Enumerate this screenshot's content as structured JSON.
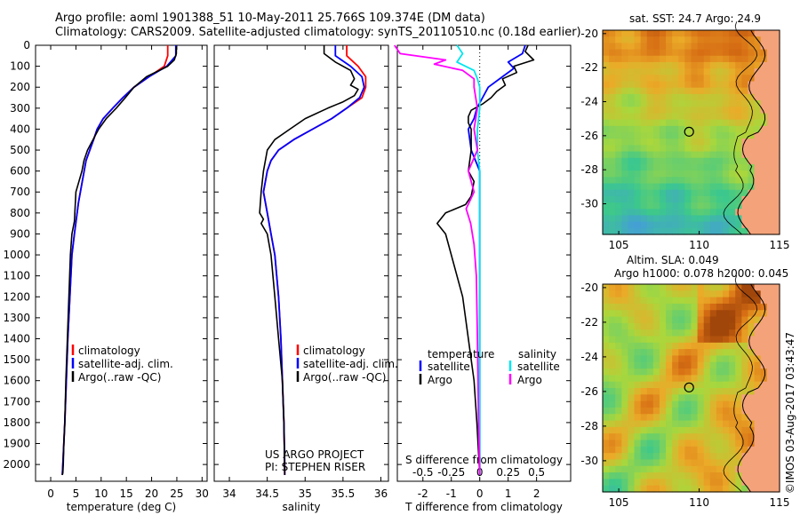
{
  "header": {
    "line1": "Argo profile: aoml 1901388_51 10-May-2011 25.766S 109.374E (DM data)",
    "line2": "Climatology: CARS2009. Satellite-adjusted climatology: synTS_20110510.nc (0.18d earlier)"
  },
  "side_text": "©IMOS 03-Aug-2017 03:43:47",
  "colors": {
    "climatology": "#ff0000",
    "satellite": "#0000ff",
    "argo": "#000000",
    "salinity_satellite": "#00e5ee",
    "salinity_argo": "#ff00ff",
    "land": "#f4a27a",
    "coast": "#000000"
  },
  "chart_data": [
    {
      "type": "line",
      "xlabel": "temperature (deg C)",
      "ylabel": "",
      "xlim": [
        -3,
        31
      ],
      "ylim": [
        2080,
        0
      ],
      "x_ticks": [
        0,
        5,
        10,
        15,
        20,
        25,
        30
      ],
      "y_ticks": [
        0,
        100,
        200,
        300,
        400,
        500,
        600,
        700,
        800,
        900,
        1000,
        1100,
        1200,
        1300,
        1400,
        1500,
        1600,
        1700,
        1800,
        1900,
        2000
      ],
      "legend": {
        "placement": "lower-center",
        "entries": [
          "climatology",
          "satellite-adj. clim.",
          "Argo(..raw -QC)"
        ]
      },
      "series": [
        {
          "name": "climatology",
          "color": "#ff0000",
          "x": [
            23.2,
            23.2,
            22.5,
            19.5,
            16.5,
            14.3,
            12.3,
            10.4,
            9.2,
            8.5,
            7.0,
            5.5,
            4.7,
            4.2,
            3.8,
            3.4,
            3.1,
            2.8,
            2.6,
            2.4,
            2.3
          ],
          "y": [
            0,
            50,
            100,
            150,
            200,
            250,
            300,
            350,
            400,
            450,
            550,
            750,
            900,
            1000,
            1200,
            1400,
            1600,
            1800,
            1900,
            2000,
            2050
          ]
        },
        {
          "name": "satellite-adj. clim.",
          "color": "#0000ff",
          "x": [
            24.8,
            24.8,
            23.0,
            19.5,
            16.5,
            14.3,
            12.3,
            10.4,
            9.2,
            8.5,
            7.0,
            5.5,
            4.7,
            4.2,
            3.8,
            3.4,
            3.1,
            2.8,
            2.6,
            2.4,
            2.3
          ],
          "y": [
            0,
            50,
            100,
            150,
            200,
            250,
            300,
            350,
            400,
            450,
            550,
            750,
            900,
            1000,
            1200,
            1400,
            1600,
            1800,
            1900,
            2000,
            2050
          ]
        },
        {
          "name": "Argo(..raw -QC)",
          "color": "#000000",
          "x": [
            24.9,
            24.9,
            24.5,
            23.2,
            19.0,
            16.5,
            14.8,
            13.0,
            11.0,
            9.5,
            8.4,
            7.3,
            6.6,
            6.2,
            5.0,
            4.7,
            4.2,
            3.9,
            3.6,
            3.3,
            3.0,
            2.8,
            2.6,
            2.5,
            2.4,
            2.3
          ],
          "y": [
            5,
            40,
            70,
            100,
            150,
            200,
            250,
            300,
            350,
            400,
            450,
            500,
            550,
            600,
            700,
            840,
            900,
            1000,
            1200,
            1400,
            1600,
            1800,
            1900,
            2000,
            2040,
            2050
          ]
        }
      ]
    },
    {
      "type": "line",
      "xlabel": "salinity",
      "ylabel": "",
      "xlim": [
        33.8,
        36.1
      ],
      "ylim": [
        2080,
        0
      ],
      "x_ticks": [
        34,
        34.5,
        35,
        35.5,
        36
      ],
      "y_ticks": [
        0,
        100,
        200,
        300,
        400,
        500,
        600,
        700,
        800,
        900,
        1000,
        1100,
        1200,
        1300,
        1400,
        1500,
        1600,
        1700,
        1800,
        1900,
        2000
      ],
      "legend": {
        "placement": "lower-center",
        "entries": [
          "climatology",
          "satellite-adj. clim.",
          "Argo(..raw -QC)"
        ]
      },
      "annotation": [
        "US ARGO PROJECT",
        "PI: STEPHEN RISER"
      ],
      "series": [
        {
          "name": "climatology",
          "color": "#ff0000",
          "x": [
            35.55,
            35.55,
            35.7,
            35.8,
            35.8,
            35.75,
            35.55,
            35.35,
            35.1,
            34.85,
            34.65,
            34.55,
            34.5,
            34.45,
            34.5,
            34.55,
            34.6,
            34.65,
            34.68,
            34.7,
            34.72,
            34.73,
            34.73
          ],
          "y": [
            0,
            50,
            100,
            150,
            200,
            250,
            300,
            350,
            400,
            450,
            500,
            550,
            600,
            700,
            800,
            900,
            1000,
            1200,
            1400,
            1600,
            1800,
            2000,
            2050
          ]
        },
        {
          "name": "satellite-adj. clim.",
          "color": "#0000ff",
          "x": [
            35.4,
            35.4,
            35.6,
            35.75,
            35.78,
            35.72,
            35.55,
            35.35,
            35.1,
            34.85,
            34.65,
            34.55,
            34.5,
            34.45,
            34.5,
            34.55,
            34.6,
            34.65,
            34.68,
            34.7,
            34.72,
            34.73,
            34.73
          ],
          "y": [
            0,
            50,
            100,
            150,
            200,
            250,
            300,
            350,
            400,
            450,
            500,
            550,
            600,
            700,
            800,
            900,
            1000,
            1200,
            1400,
            1600,
            1800,
            2000,
            2050
          ]
        },
        {
          "name": "Argo(..raw -QC)",
          "color": "#000000",
          "x": [
            35.25,
            35.25,
            35.4,
            35.6,
            35.65,
            35.6,
            35.7,
            35.65,
            35.5,
            35.3,
            35.0,
            34.8,
            34.6,
            34.5,
            34.45,
            34.42,
            34.4,
            34.45,
            34.42,
            34.5,
            34.55,
            34.6,
            34.65,
            34.7,
            34.72,
            34.73
          ],
          "y": [
            0,
            40,
            80,
            120,
            160,
            190,
            210,
            240,
            270,
            300,
            350,
            400,
            450,
            500,
            600,
            700,
            800,
            830,
            850,
            900,
            1000,
            1200,
            1400,
            1600,
            1800,
            2050
          ]
        }
      ]
    },
    {
      "type": "line",
      "xlabel": "T difference from climatology",
      "ylabel": "",
      "xlim": [
        -2.9,
        3.2
      ],
      "ylim": [
        2080,
        0
      ],
      "x_ticks": [
        -2,
        -1,
        0,
        1,
        2
      ],
      "x_ticks_top": [
        -0.5,
        -0.25,
        0,
        0.25,
        0.5
      ],
      "x_label_top": "S difference from climatology",
      "y_ticks": [
        0,
        100,
        200,
        300,
        400,
        500,
        600,
        700,
        800,
        900,
        1000,
        1100,
        1200,
        1300,
        1400,
        1500,
        1600,
        1700,
        1800,
        1900,
        2000
      ],
      "legend": {
        "placement": "lower-center",
        "group_titles": [
          "temperature",
          "salinity"
        ],
        "entries": [
          "satellite",
          "Argo",
          "satellite",
          "Argo"
        ]
      },
      "series": [
        {
          "name": "satellite",
          "group": "temperature",
          "color": "#0000ff",
          "x": [
            1.6,
            1.5,
            1.0,
            1.2,
            0.8,
            0.3,
            0.1,
            -0.1,
            -0.2,
            -0.4,
            -0.3,
            0.0,
            0.0,
            0.0,
            0.0,
            0.0,
            0.0,
            0.0,
            0.0
          ],
          "y": [
            0,
            40,
            80,
            110,
            150,
            200,
            250,
            300,
            350,
            400,
            500,
            600,
            700,
            800,
            900,
            1000,
            1400,
            1800,
            2050
          ]
        },
        {
          "name": "Argo",
          "group": "temperature",
          "color": "#000000",
          "x": [
            1.7,
            1.6,
            1.9,
            1.2,
            1.3,
            0.8,
            0.9,
            0.6,
            0.4,
            0.1,
            -0.3,
            -0.4,
            -0.4,
            -0.3,
            -0.3,
            -0.4,
            -0.2,
            -0.3,
            -0.5,
            -1.2,
            -1.5,
            -1.2,
            -1.0,
            -0.6,
            -0.4,
            -0.2,
            -0.1,
            0.0
          ],
          "y": [
            0,
            30,
            70,
            100,
            130,
            160,
            190,
            220,
            250,
            280,
            310,
            340,
            370,
            400,
            500,
            600,
            650,
            720,
            760,
            800,
            850,
            900,
            1000,
            1200,
            1400,
            1600,
            1800,
            2050
          ]
        },
        {
          "name": "satellite",
          "group": "salinity",
          "color": "#00e5ee",
          "x": [
            -0.2,
            -0.15,
            -0.2,
            -0.05,
            -0.02,
            0.0,
            0.0,
            -0.02,
            -0.02,
            0.0,
            0.0,
            0.0,
            0.0,
            0.0,
            0.0
          ],
          "y": [
            0,
            40,
            80,
            120,
            160,
            200,
            300,
            400,
            500,
            600,
            800,
            1000,
            1400,
            1800,
            2050
          ]
        },
        {
          "name": "Argo",
          "group": "salinity",
          "color": "#ff00ff",
          "x": [
            -0.75,
            -0.7,
            -0.3,
            -0.4,
            -0.15,
            -0.05,
            -0.05,
            -0.02,
            -0.05,
            -0.02,
            -0.1,
            -0.05,
            -0.12,
            -0.08,
            -0.05,
            -0.03,
            -0.02,
            -0.01,
            0.0
          ],
          "y": [
            0,
            40,
            70,
            90,
            120,
            160,
            200,
            300,
            400,
            500,
            600,
            700,
            780,
            850,
            950,
            1100,
            1400,
            1800,
            2050
          ]
        }
      ]
    },
    {
      "type": "heatmap",
      "title": "sat. SST: 24.7  Argo: 24.9",
      "xlim": [
        104,
        115
      ],
      "ylim": [
        -31.8,
        -19.8
      ],
      "x_ticks": [
        105,
        110,
        115
      ],
      "y_ticks": [
        -20,
        -22,
        -24,
        -26,
        -28,
        -30
      ],
      "marker": {
        "lon": 109.374,
        "lat": -25.766
      }
    },
    {
      "type": "heatmap",
      "title_lines": [
        "Altim. SLA: 0.049",
        "Argo h1000: 0.078  h2000: 0.045"
      ],
      "xlim": [
        104,
        115
      ],
      "ylim": [
        -31.8,
        -19.8
      ],
      "x_ticks": [
        105,
        110,
        115
      ],
      "y_ticks": [
        -20,
        -22,
        -24,
        -26,
        -28,
        -30
      ],
      "marker": {
        "lon": 109.374,
        "lat": -25.766
      }
    }
  ]
}
